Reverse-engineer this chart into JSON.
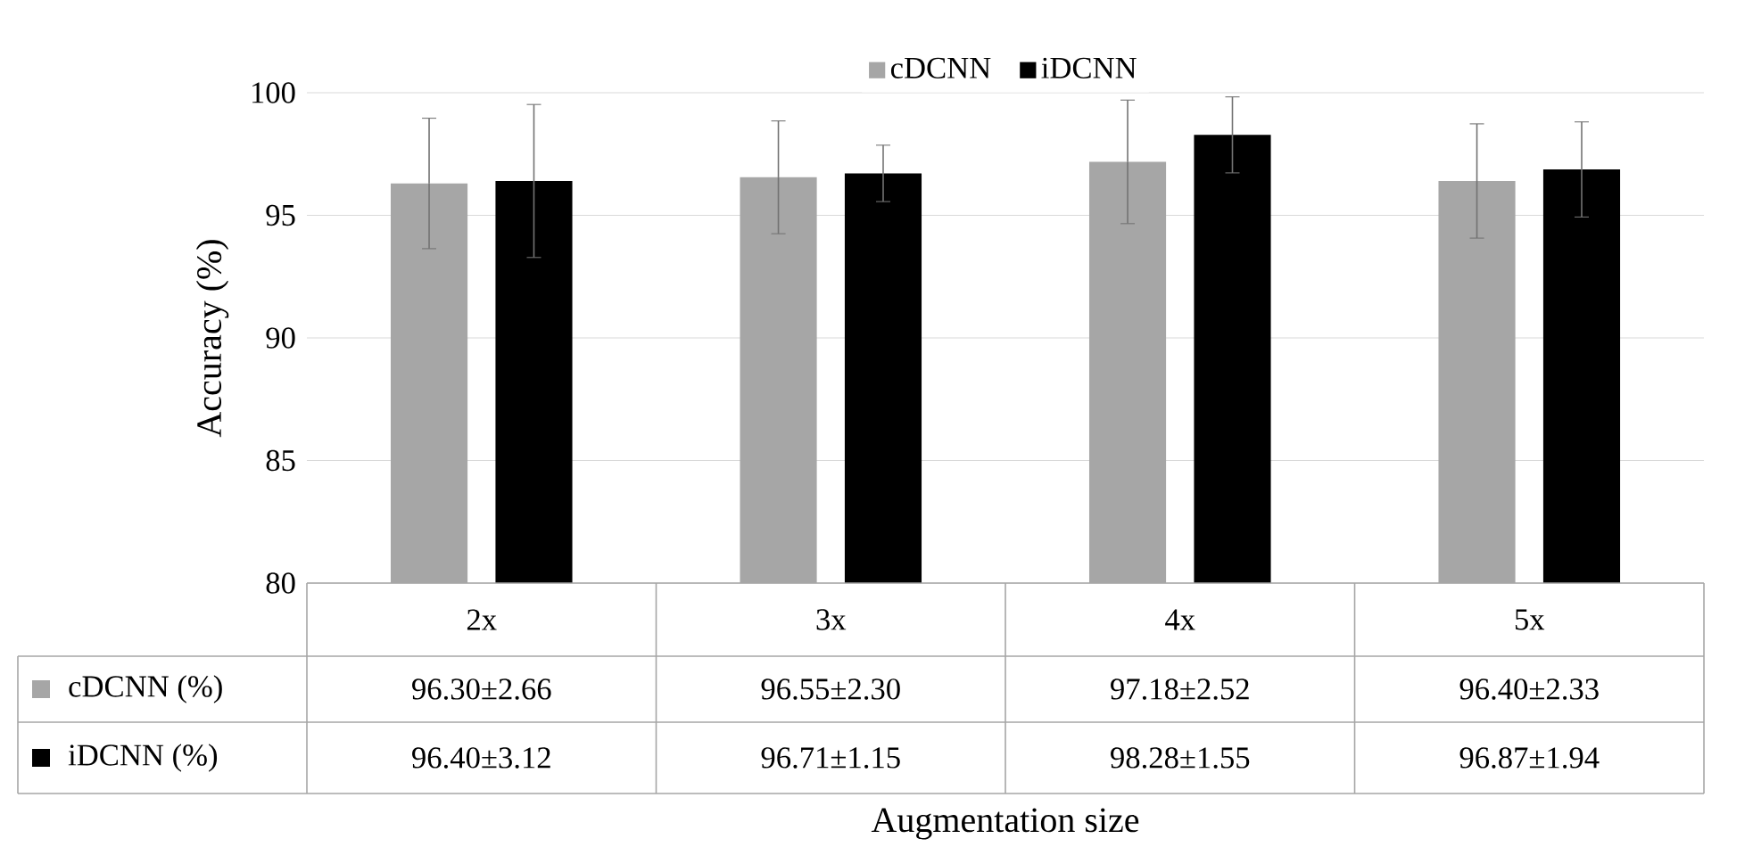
{
  "chart_data": {
    "type": "bar",
    "xlabel": "Augmentation size",
    "ylabel": "Accuracy (%)",
    "categories": [
      "2x",
      "3x",
      "4x",
      "5x"
    ],
    "series": [
      {
        "name": "cDCNN",
        "color": "#a6a6a6",
        "values": [
          96.3,
          96.55,
          97.18,
          96.4
        ],
        "errors": [
          2.66,
          2.3,
          2.52,
          2.33
        ],
        "value_labels": [
          "96.30±2.66",
          "96.55±2.30",
          "97.18±2.52",
          "96.40±2.33"
        ]
      },
      {
        "name": "iDCNN",
        "color": "#000000",
        "values": [
          96.4,
          96.71,
          98.28,
          96.87
        ],
        "errors": [
          3.12,
          1.15,
          1.55,
          1.94
        ],
        "value_labels": [
          "96.40±3.12",
          "96.71±1.15",
          "98.28±1.55",
          "96.87±1.94"
        ]
      }
    ],
    "annotations": [
      "cDCNN (%)",
      "iDCNN (%)"
    ],
    "ylim": [
      80,
      100
    ],
    "yticks": [
      80,
      85,
      90,
      95,
      100
    ],
    "grid": "y",
    "legend": "top"
  }
}
